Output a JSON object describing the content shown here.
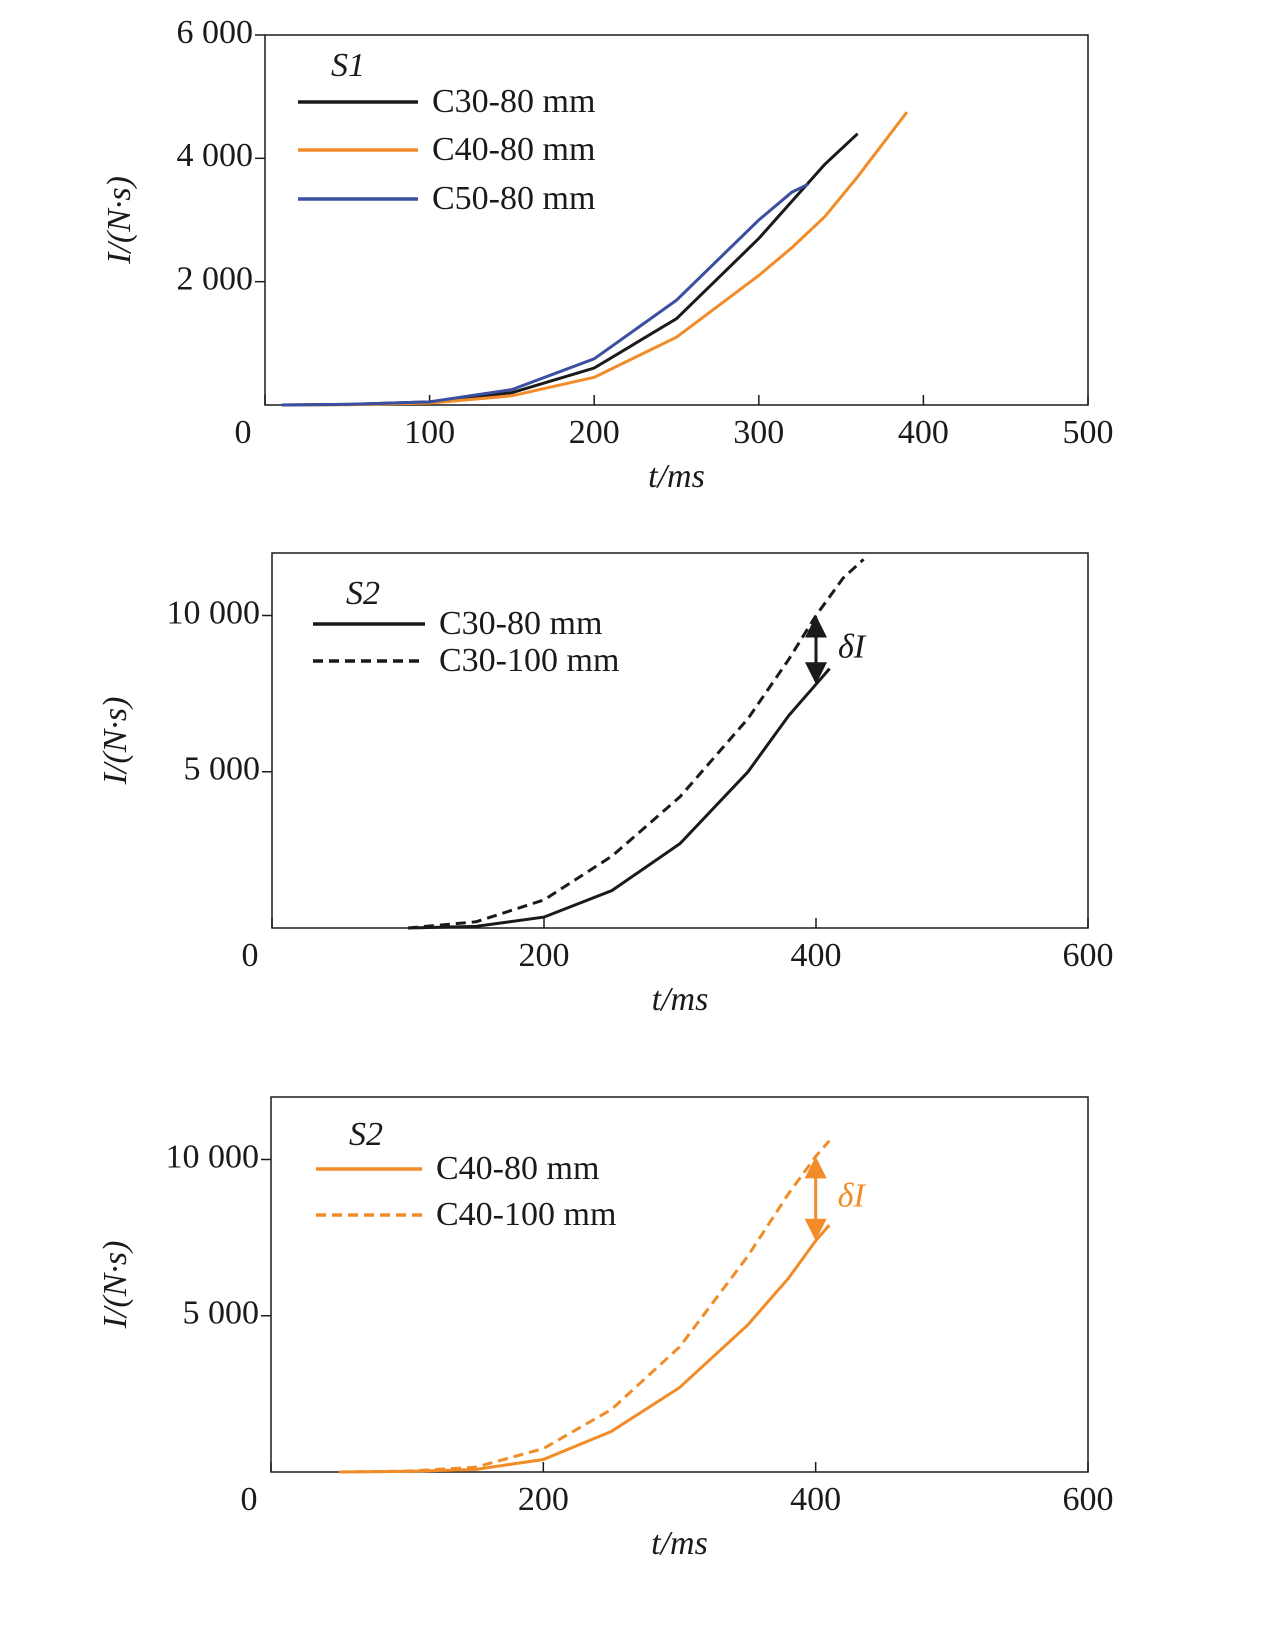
{
  "chart_data": [
    {
      "type": "line",
      "legend_title": "S1",
      "xlabel": "t/ms",
      "ylabel": "I/(N·s)",
      "x": [
        10,
        50,
        100,
        150,
        200,
        250,
        300,
        320,
        330,
        340,
        360,
        370,
        390
      ],
      "series": [
        {
          "name": "C30-80 mm",
          "color": "#1a1a1a",
          "values": [
            0,
            10,
            50,
            200,
            600,
            1400,
            2700,
            3300,
            3600,
            3900,
            4400,
            null,
            null
          ]
        },
        {
          "name": "C40-80 mm",
          "color": "#f28c28",
          "values": [
            0,
            5,
            30,
            150,
            450,
            1100,
            2100,
            2550,
            2800,
            3050,
            3700,
            4050,
            4750
          ]
        },
        {
          "name": "C50-80 mm",
          "color": "#3a4fa0",
          "values": [
            0,
            10,
            50,
            250,
            750,
            1700,
            3000,
            3450,
            3580,
            null,
            null,
            null,
            null
          ]
        }
      ],
      "xlim": [
        0,
        500
      ],
      "xticks": [
        0,
        100,
        200,
        300,
        400,
        500
      ],
      "ylim": [
        0,
        6000
      ],
      "yticks": [
        {
          "value": 2000,
          "label": "2 000"
        },
        {
          "value": 4000,
          "label": "4 000"
        },
        {
          "value": 6000,
          "label": "6 000"
        }
      ]
    },
    {
      "type": "line",
      "legend_title": "S2",
      "xlabel": "t/ms",
      "ylabel": "I/(N·s)",
      "annotation": "δI",
      "x": [
        100,
        150,
        200,
        250,
        300,
        350,
        380,
        400,
        410,
        420,
        435
      ],
      "series": [
        {
          "name": "C30-80 mm",
          "color": "#1a1a1a",
          "dashed": false,
          "values": [
            0,
            50,
            350,
            1200,
            2700,
            5000,
            6800,
            7800,
            8300,
            null,
            null
          ]
        },
        {
          "name": "C30-100 mm",
          "color": "#1a1a1a",
          "dashed": true,
          "values": [
            0,
            200,
            900,
            2300,
            4200,
            6700,
            8600,
            10000,
            10600,
            11200,
            11800
          ]
        }
      ],
      "xlim": [
        0,
        600
      ],
      "xticks": [
        0,
        200,
        400,
        600
      ],
      "ylim": [
        0,
        12000
      ],
      "yticks": [
        {
          "value": 5000,
          "label": "5 000"
        },
        {
          "value": 10000,
          "label": "10 000"
        }
      ]
    },
    {
      "type": "line",
      "legend_title": "S2",
      "xlabel": "t/ms",
      "ylabel": "I/(N·s)",
      "annotation": "δI",
      "x": [
        50,
        100,
        150,
        200,
        250,
        300,
        350,
        380,
        400,
        410
      ],
      "series": [
        {
          "name": "C40-80 mm",
          "color": "#f28c28",
          "dashed": false,
          "values": [
            0,
            20,
            80,
            400,
            1300,
            2700,
            4700,
            6200,
            7400,
            7900
          ]
        },
        {
          "name": "C40-100 mm",
          "color": "#f28c28",
          "dashed": true,
          "values": [
            0,
            30,
            150,
            750,
            2000,
            4000,
            6900,
            8900,
            10100,
            10600
          ]
        }
      ],
      "xlim": [
        0,
        600
      ],
      "xticks": [
        0,
        200,
        400,
        600
      ],
      "ylim": [
        0,
        12000
      ],
      "yticks": [
        {
          "value": 5000,
          "label": "5 000"
        },
        {
          "value": 10000,
          "label": "10 000"
        }
      ]
    }
  ]
}
